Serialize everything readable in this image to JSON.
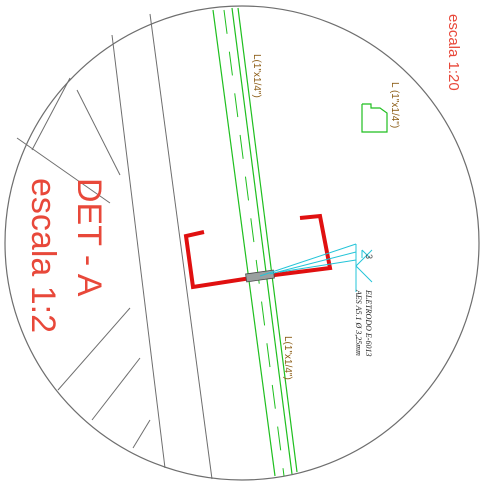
{
  "drawing": {
    "detail_title": "DET - A",
    "detail_scale": "escala 1:2",
    "profile_scale": "escala 1:20",
    "angle_label_profile": "L (1\"x1/4\")",
    "angle_label_upper": "L(1\"x1/4\")",
    "angle_label_lower": "L(1\"x1/4\")",
    "weld_size": "3",
    "weld_note_line1": "ELETRODO E-6013",
    "weld_note_line2": "AES A5.1 Ø 3,25mm"
  },
  "colors": {
    "outline": "#6e6e6e",
    "angle_green": "#1fbf1f",
    "bracket_red": "#e01010",
    "weld_cyan": "#23c4d8",
    "label_brown": "#8a5a12",
    "title_red": "#e8483a"
  }
}
